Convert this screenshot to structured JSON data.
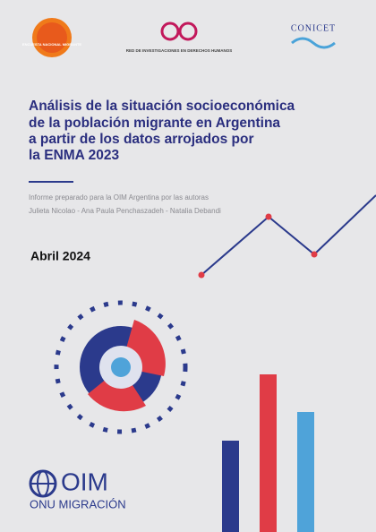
{
  "logos": {
    "left": "ENCUESTA NACIONAL MIGRANTE",
    "center": "RED DE INVESTIGACIONES EN DERECHOS HUMANOS",
    "right": "CONICET"
  },
  "title": [
    "Análisis de la situación socioeconómica",
    "de la población migrante en Argentina",
    "a partir de los datos arrojados por",
    "la ENMA 2023"
  ],
  "credits": [
    "Informe preparado para la OIM Argentina por las autoras",
    "Julieta Nicolao - Ana Paula Penchaszadeh - Natalia Debandi"
  ],
  "date": "Abril 2024",
  "publisher": {
    "name": "OIM",
    "subtitle": "ONU MIGRACIÓN"
  }
}
